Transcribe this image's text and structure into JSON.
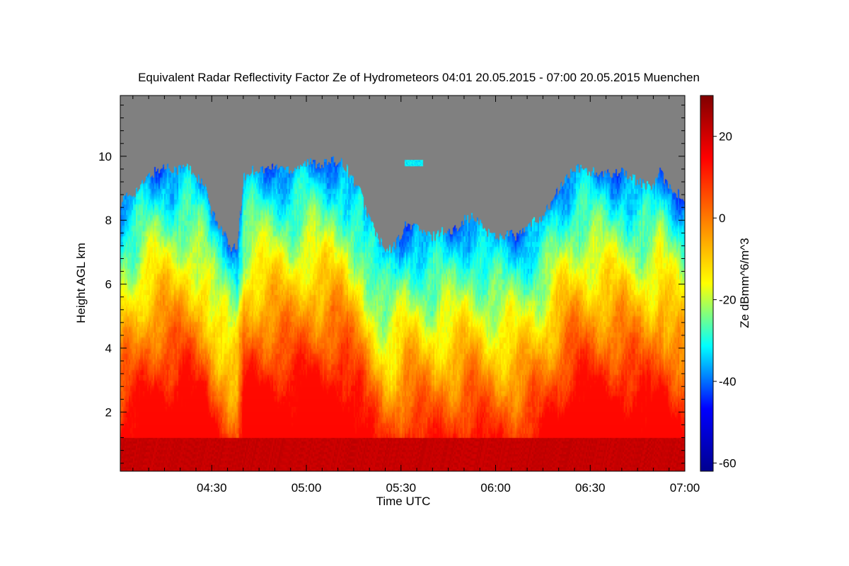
{
  "chart_data": {
    "type": "heatmap",
    "title": "Equivalent Radar Reflectivity Factor Ze of Hydrometeors   04:01 20.05.2015 - 07:00 20.05.2015 Muenchen",
    "xlabel": "Time UTC",
    "ylabel": "Height AGL km",
    "colorbar_label": "Ze dBmm^6/m^3",
    "x_range_minutes": [
      241,
      420
    ],
    "x_ticks": [
      {
        "minutes": 270,
        "label": "04:30"
      },
      {
        "minutes": 300,
        "label": "05:00"
      },
      {
        "minutes": 330,
        "label": "05:30"
      },
      {
        "minutes": 360,
        "label": "06:00"
      },
      {
        "minutes": 390,
        "label": "06:30"
      },
      {
        "minutes": 420,
        "label": "07:00"
      }
    ],
    "y_range_km": [
      0.15,
      11.9
    ],
    "y_ticks": [
      {
        "value": 2,
        "label": "2"
      },
      {
        "value": 4,
        "label": "4"
      },
      {
        "value": 6,
        "label": "6"
      },
      {
        "value": 8,
        "label": "8"
      },
      {
        "value": 10,
        "label": "10"
      }
    ],
    "colorbar_range": [
      -62,
      30
    ],
    "colorbar_ticks": [
      {
        "value": 20,
        "label": "20"
      },
      {
        "value": 0,
        "label": "0"
      },
      {
        "value": -20,
        "label": "-20"
      },
      {
        "value": -40,
        "label": "-40"
      },
      {
        "value": -60,
        "label": "-60"
      }
    ],
    "no_signal_color": "#808080",
    "colormap": [
      "#00008f",
      "#0000ff",
      "#00ffff",
      "#ffff00",
      "#ff7f00",
      "#ff0000",
      "#800000"
    ],
    "cloud_top_km": [
      [
        241,
        8.6
      ],
      [
        244,
        8.8
      ],
      [
        247,
        9.0
      ],
      [
        250,
        9.4
      ],
      [
        253,
        9.6
      ],
      [
        256,
        9.7
      ],
      [
        259,
        9.6
      ],
      [
        262,
        9.7
      ],
      [
        265,
        9.4
      ],
      [
        268,
        9.0
      ],
      [
        270,
        8.2
      ],
      [
        272,
        7.9
      ],
      [
        274,
        7.6
      ],
      [
        276,
        7.0
      ],
      [
        278,
        7.2
      ],
      [
        280,
        9.3
      ],
      [
        283,
        9.6
      ],
      [
        287,
        9.6
      ],
      [
        291,
        9.7
      ],
      [
        295,
        9.6
      ],
      [
        299,
        9.8
      ],
      [
        303,
        9.8
      ],
      [
        307,
        9.8
      ],
      [
        311,
        9.9
      ],
      [
        314,
        9.4
      ],
      [
        317,
        8.9
      ],
      [
        319,
        8.3
      ],
      [
        322,
        7.6
      ],
      [
        325,
        7.0
      ],
      [
        328,
        7.2
      ],
      [
        331,
        7.8
      ],
      [
        334,
        7.9
      ],
      [
        337,
        7.6
      ],
      [
        340,
        7.5
      ],
      [
        343,
        7.7
      ],
      [
        346,
        7.6
      ],
      [
        349,
        8.0
      ],
      [
        352,
        8.1
      ],
      [
        355,
        7.9
      ],
      [
        358,
        7.6
      ],
      [
        361,
        7.5
      ],
      [
        364,
        7.6
      ],
      [
        367,
        7.5
      ],
      [
        370,
        7.8
      ],
      [
        373,
        8.0
      ],
      [
        376,
        8.3
      ],
      [
        379,
        8.8
      ],
      [
        382,
        9.3
      ],
      [
        385,
        9.6
      ],
      [
        388,
        9.6
      ],
      [
        391,
        9.5
      ],
      [
        394,
        9.4
      ],
      [
        397,
        9.5
      ],
      [
        400,
        9.6
      ],
      [
        403,
        9.3
      ],
      [
        406,
        9.2
      ],
      [
        409,
        9.0
      ],
      [
        412,
        9.5
      ],
      [
        415,
        9.1
      ],
      [
        418,
        8.8
      ],
      [
        420,
        8.6
      ]
    ],
    "isolated_echo": {
      "minutes": [
        331,
        337
      ],
      "height_km": [
        9.7,
        9.9
      ]
    },
    "grid": false,
    "legend": "colorbar-right"
  }
}
